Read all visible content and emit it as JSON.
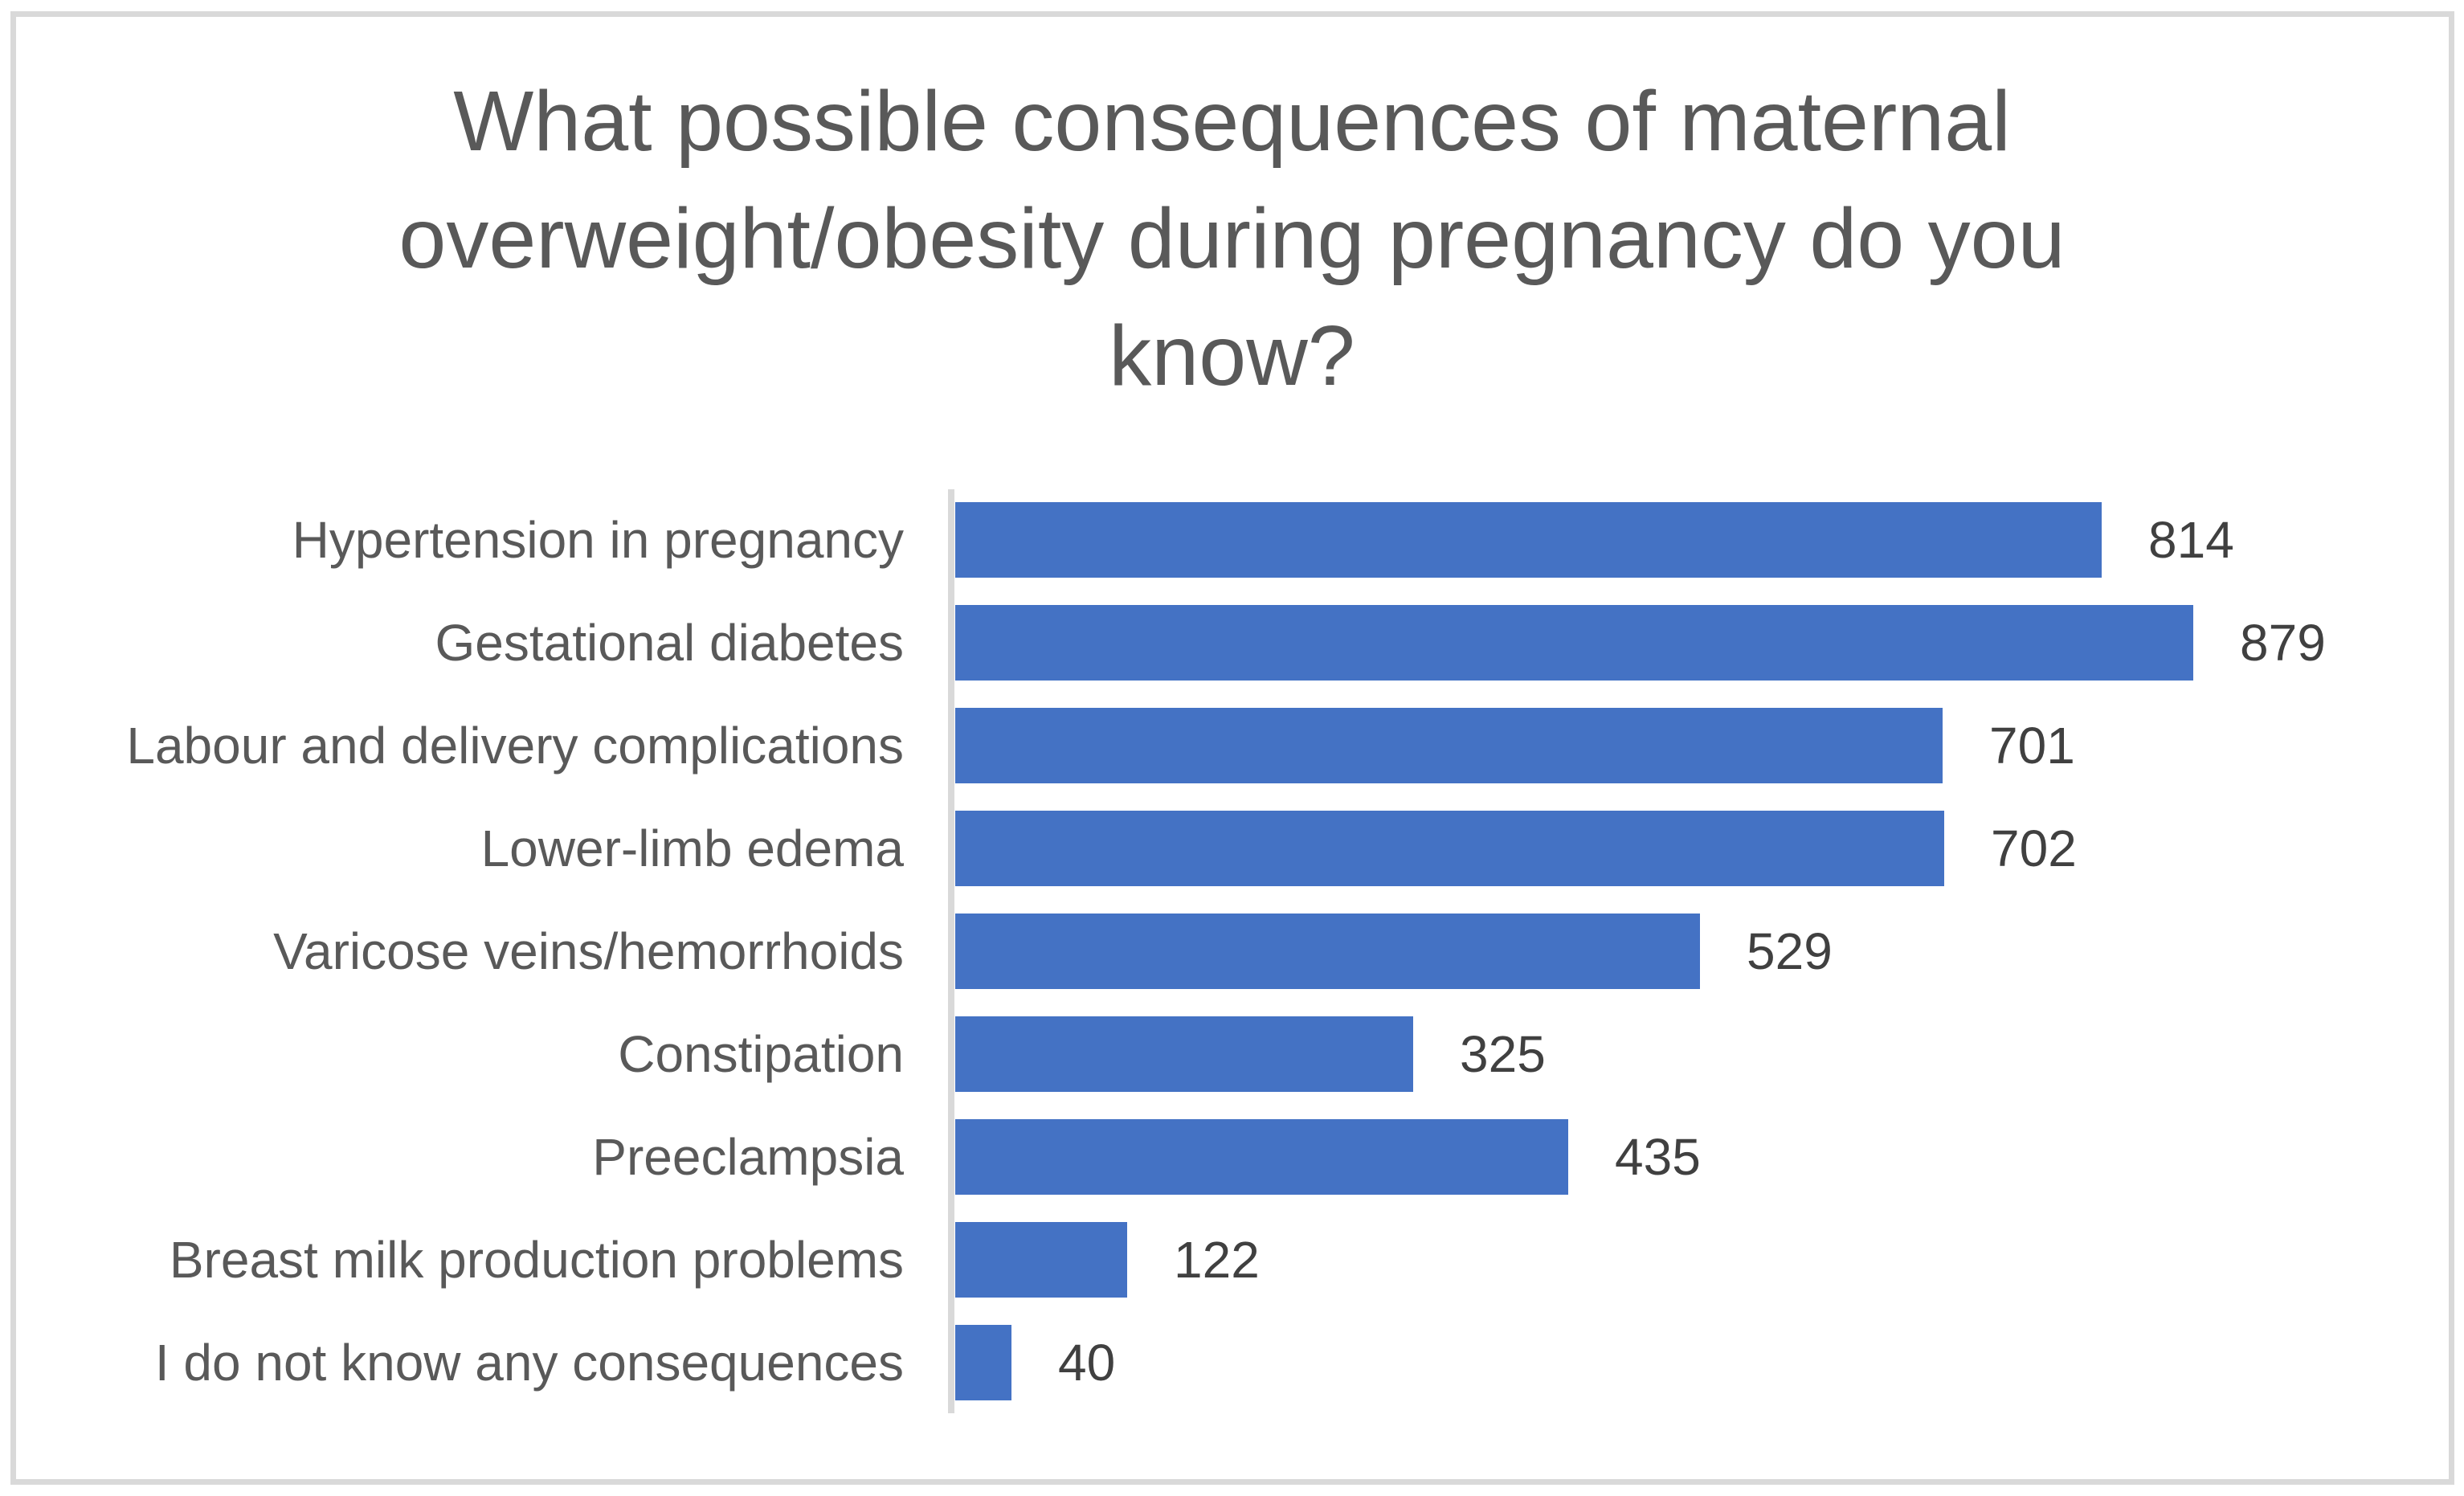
{
  "ui": {
    "background_color": "#FFFFFF",
    "frame_border_color": "#D9D9D9"
  },
  "chart_data": {
    "type": "bar",
    "orientation": "horizontal",
    "title": "What possible consequences of maternal overweight/obesity during pregnancy do you know?",
    "title_lines": [
      "What possible consequences of maternal",
      "overweight/obesity during pregnancy do you",
      "know?"
    ],
    "categories": [
      "Hypertension in pregnancy",
      "Gestational diabetes",
      "Labour and delivery complications",
      "Lower-limb edema",
      "Varicose veins/hemorrhoids",
      "Constipation",
      "Preeclampsia",
      "Breast milk production problems",
      "I do not know any consequences"
    ],
    "values": [
      814,
      879,
      701,
      702,
      529,
      325,
      435,
      122,
      40
    ],
    "data_labels": true,
    "grid": false,
    "legend": false,
    "value_axis_visible": false,
    "value_axis_min": 0,
    "bar_color": "#4472C4",
    "axis_line_color": "#D9D9D9",
    "title_color": "#595959",
    "category_label_color": "#595959",
    "data_label_color": "#404040"
  }
}
